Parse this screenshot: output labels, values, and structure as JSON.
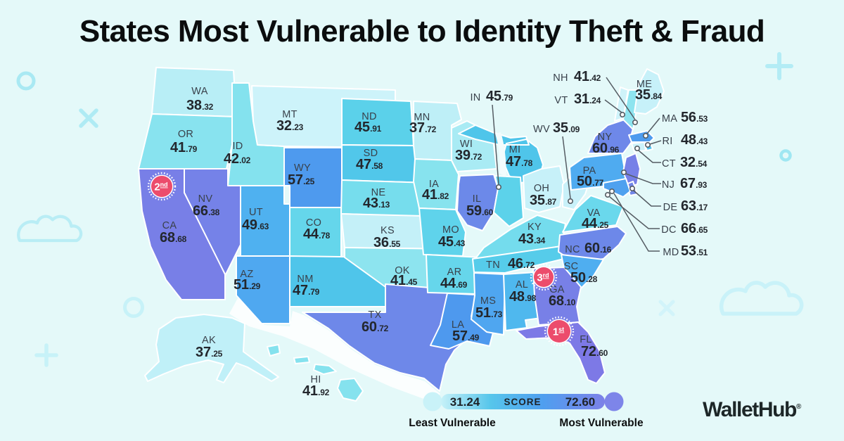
{
  "title": "States Most Vulnerable to Identity Theft & Fraud",
  "brand": {
    "name": "WalletHub",
    "registered": "®"
  },
  "legend": {
    "min": "31.24",
    "score_label": "SCORE",
    "max": "72.60",
    "least_label": "Least Vulnerable",
    "most_label": "Most Vulnerable"
  },
  "badges": [
    {
      "rank": "1",
      "suffix": "st",
      "state": "FL"
    },
    {
      "rank": "2",
      "suffix": "nd",
      "state": "CA"
    },
    {
      "rank": "3",
      "suffix": "rd",
      "state": "GA"
    }
  ],
  "colors": {
    "background": "#E4F9F9",
    "badge": "#EC4C6C",
    "state_border": "#FFFFFF",
    "label_code": "#39414B",
    "label_value": "#23272D",
    "callout_line": "#555C63",
    "scale": [
      [
        31.24,
        "#CFF3FA"
      ],
      [
        36,
        "#C7F1F9"
      ],
      [
        38,
        "#BCEFF7"
      ],
      [
        40,
        "#A6EAF3"
      ],
      [
        42,
        "#84E2EE"
      ],
      [
        44,
        "#6CD9EC"
      ],
      [
        46,
        "#5AD1EA"
      ],
      [
        48,
        "#4EC4EA"
      ],
      [
        49.5,
        "#4FB2F0"
      ],
      [
        52,
        "#4FA4F0"
      ],
      [
        57.5,
        "#4E99EE"
      ],
      [
        59.5,
        "#6C89E9"
      ],
      [
        66,
        "#7583E8"
      ],
      [
        72.6,
        "#7D79E6"
      ]
    ]
  },
  "map": {
    "states": [
      {
        "code": "WA",
        "score": "38.32"
      },
      {
        "code": "OR",
        "score": "41.79"
      },
      {
        "code": "CA",
        "score": "68.68"
      },
      {
        "code": "NV",
        "score": "66.38"
      },
      {
        "code": "ID",
        "score": "42.02"
      },
      {
        "code": "MT",
        "score": "32.23"
      },
      {
        "code": "WY",
        "score": "57.25"
      },
      {
        "code": "UT",
        "score": "49.63"
      },
      {
        "code": "CO",
        "score": "44.78"
      },
      {
        "code": "AZ",
        "score": "51.29"
      },
      {
        "code": "NM",
        "score": "47.79"
      },
      {
        "code": "ND",
        "score": "45.91"
      },
      {
        "code": "SD",
        "score": "47.58"
      },
      {
        "code": "NE",
        "score": "43.13"
      },
      {
        "code": "KS",
        "score": "36.55"
      },
      {
        "code": "OK",
        "score": "41.45"
      },
      {
        "code": "TX",
        "score": "60.72"
      },
      {
        "code": "MN",
        "score": "37.72"
      },
      {
        "code": "IA",
        "score": "41.82"
      },
      {
        "code": "MO",
        "score": "45.43"
      },
      {
        "code": "AR",
        "score": "44.69"
      },
      {
        "code": "LA",
        "score": "57.49"
      },
      {
        "code": "WI",
        "score": "39.72"
      },
      {
        "code": "IL",
        "score": "59.60"
      },
      {
        "code": "MI",
        "score": "47.78"
      },
      {
        "code": "IN",
        "score": "45.79"
      },
      {
        "code": "OH",
        "score": "35.87"
      },
      {
        "code": "KY",
        "score": "43.34"
      },
      {
        "code": "TN",
        "score": "46.72"
      },
      {
        "code": "MS",
        "score": "51.73"
      },
      {
        "code": "AL",
        "score": "48.98"
      },
      {
        "code": "WV",
        "score": "35.09"
      },
      {
        "code": "VA",
        "score": "44.25"
      },
      {
        "code": "NC",
        "score": "60.16"
      },
      {
        "code": "SC",
        "score": "50.28"
      },
      {
        "code": "GA",
        "score": "68.10"
      },
      {
        "code": "FL",
        "score": "72.60"
      },
      {
        "code": "NY",
        "score": "60.96"
      },
      {
        "code": "PA",
        "score": "50.77"
      },
      {
        "code": "NJ",
        "score": "67.93"
      },
      {
        "code": "DE",
        "score": "63.17"
      },
      {
        "code": "MD",
        "score": "53.51"
      },
      {
        "code": "DC",
        "score": "66.65"
      },
      {
        "code": "VT",
        "score": "31.24"
      },
      {
        "code": "NH",
        "score": "41.42"
      },
      {
        "code": "MA",
        "score": "56.53"
      },
      {
        "code": "RI",
        "score": "48.43"
      },
      {
        "code": "CT",
        "score": "32.54"
      },
      {
        "code": "ME",
        "score": "35.84"
      },
      {
        "code": "AK",
        "score": "37.25"
      },
      {
        "code": "HI",
        "score": "41.92"
      }
    ]
  }
}
